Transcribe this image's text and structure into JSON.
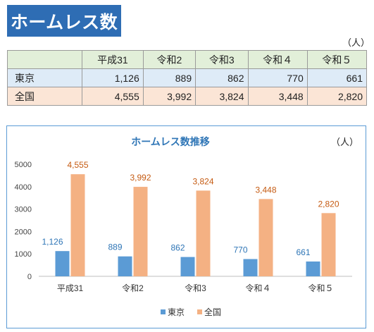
{
  "header": {
    "title": "ホームレス数"
  },
  "table": {
    "unit": "（人）",
    "columns": [
      "",
      "平成31",
      "令和2",
      "令和3",
      "令和４",
      "令和５"
    ],
    "rows": [
      {
        "label": "東京",
        "values": [
          "1,126",
          "889",
          "862",
          "770",
          "661"
        ]
      },
      {
        "label": "全国",
        "values": [
          "4,555",
          "3,992",
          "3,824",
          "3,448",
          "2,820"
        ]
      }
    ]
  },
  "chart_data": {
    "type": "bar",
    "title": "ホームレス数推移",
    "unit": "（人）",
    "categories": [
      "平成31",
      "令和2",
      "令和3",
      "令和４",
      "令和５"
    ],
    "series": [
      {
        "name": "東京",
        "values": [
          1126,
          889,
          862,
          770,
          661
        ],
        "labels": [
          "1,126",
          "889",
          "862",
          "770",
          "661"
        ],
        "color": "#5b9bd5",
        "label_color": "#2e75b6"
      },
      {
        "name": "全国",
        "values": [
          4555,
          3992,
          3824,
          3448,
          2820
        ],
        "labels": [
          "4,555",
          "3,992",
          "3,824",
          "3,448",
          "2,820"
        ],
        "color": "#f4b183",
        "label_color": "#c55a11"
      }
    ],
    "ylim": [
      0,
      5000
    ],
    "yticks": [
      "0",
      "1000",
      "2000",
      "3000",
      "4000",
      "5000"
    ],
    "grid": false,
    "legend": "bottom",
    "title_color": "#2e75b6"
  }
}
